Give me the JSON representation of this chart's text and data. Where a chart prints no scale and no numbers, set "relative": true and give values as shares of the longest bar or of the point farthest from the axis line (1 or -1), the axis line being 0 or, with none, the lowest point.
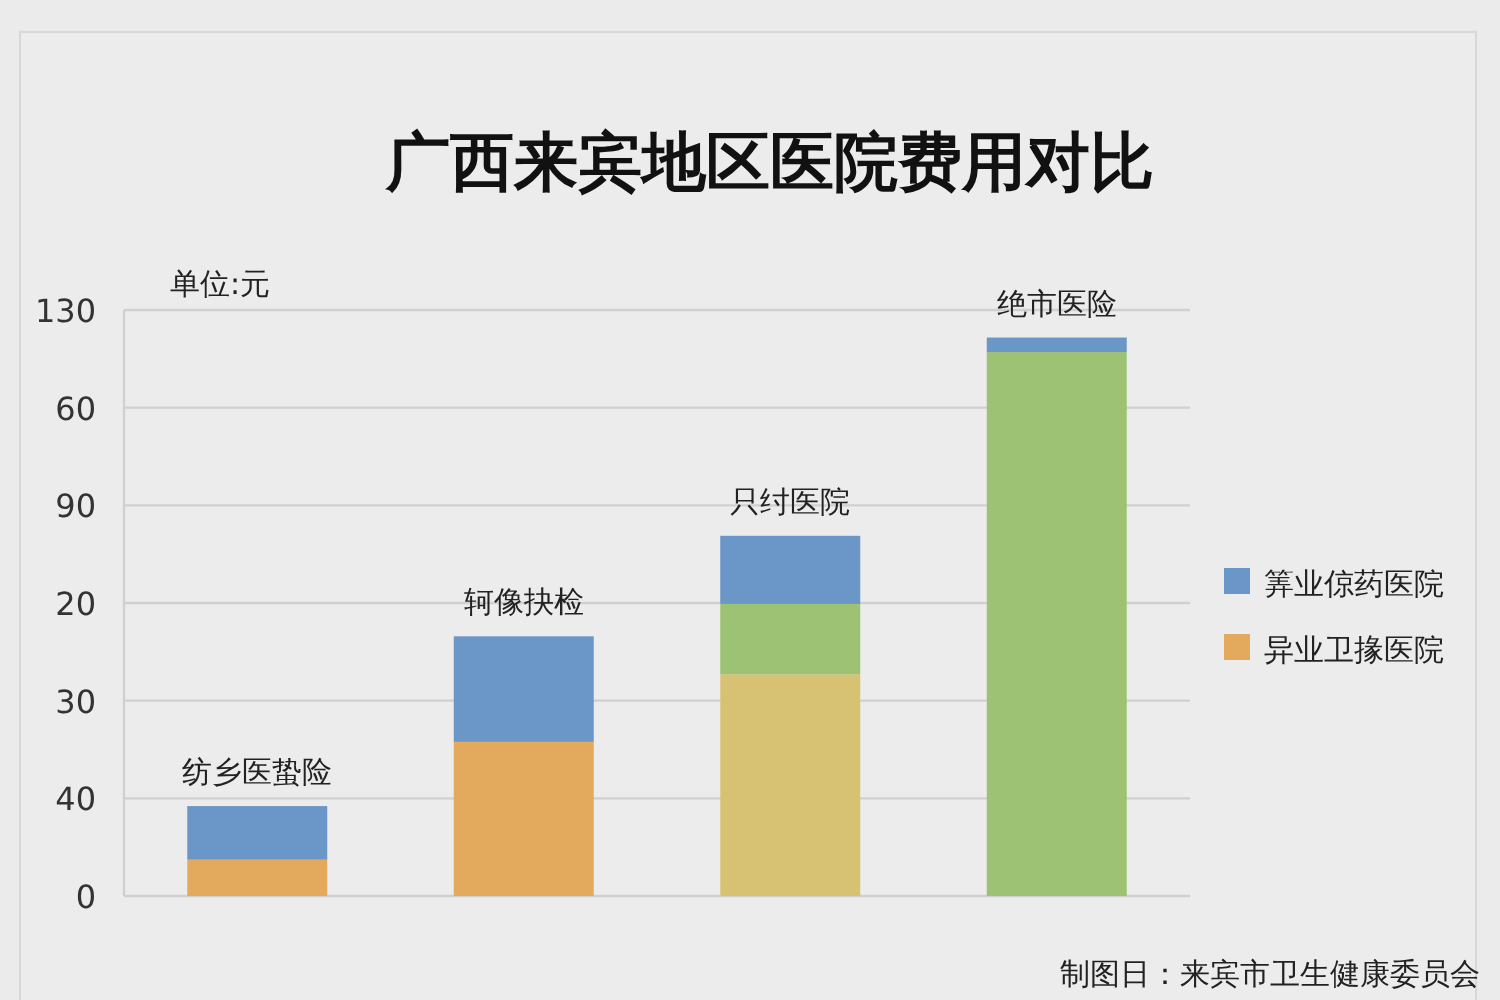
{
  "chart_data": {
    "type": "bar",
    "relative": true,
    "title": "广西来宾地区医院费用对比",
    "categories": [
      "纺乡医蛰险",
      "轲像抉检",
      "只纣医院",
      "绝市医险"
    ],
    "stacked": true,
    "grid": "y",
    "legend": "right",
    "series": [
      {
        "name": "异业卫掾医院",
        "color": "#e3aa5e",
        "colors": [
          "#e3aa5e",
          "#e3aa5e",
          "#d7c274",
          null
        ],
        "values": [
          0.065,
          0.276,
          0.397,
          null
        ]
      },
      {
        "color": "#9dc273",
        "values": [
          null,
          null,
          0.126,
          0.974
        ]
      },
      {
        "name": "筭业倞药医院",
        "color": "#6a97c8",
        "values": [
          0.096,
          0.189,
          0.122,
          0.026
        ]
      }
    ],
    "annotations": [
      "单位:元",
      "制图日：来宾市卫生健康委员会",
      "0",
      "40",
      "30",
      "20",
      "90",
      "60",
      "130"
    ]
  }
}
